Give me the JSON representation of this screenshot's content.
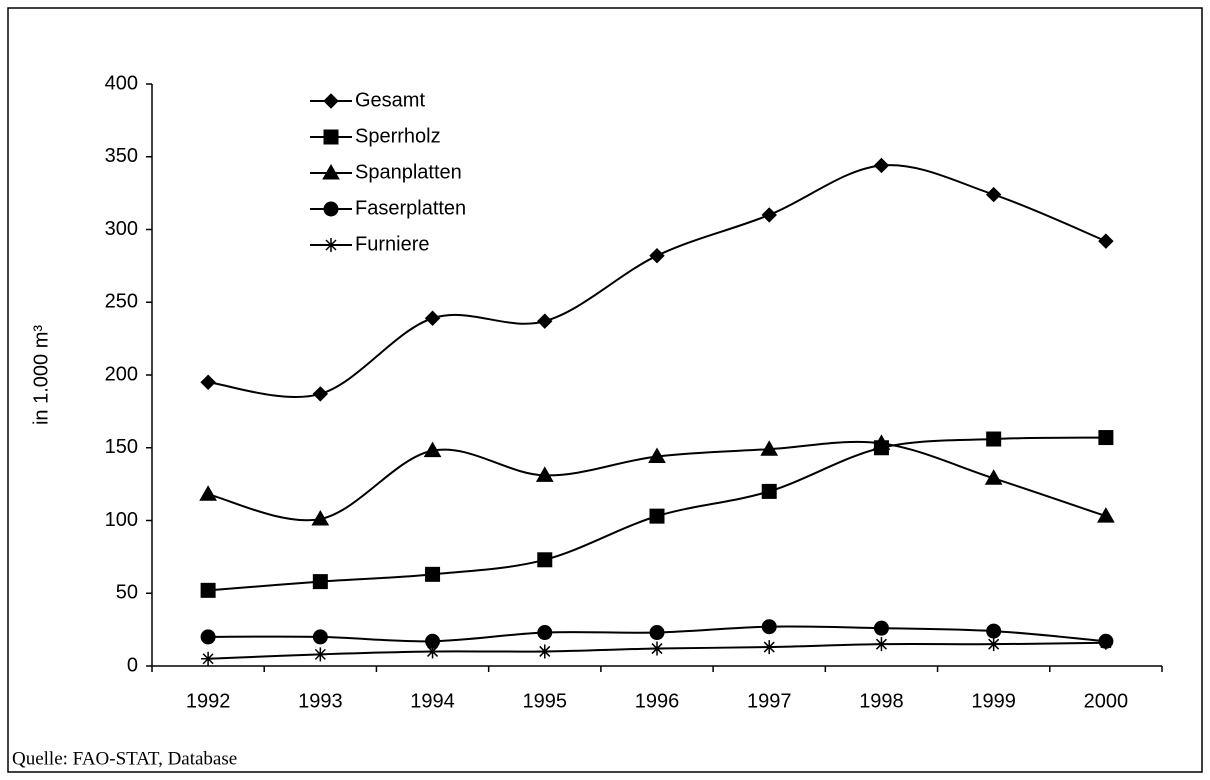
{
  "chart_data": {
    "type": "line",
    "source": "Quelle: FAO-STAT, Database",
    "y_label": "in 1.000 m³",
    "categories": [
      "1992",
      "1993",
      "1994",
      "1995",
      "1996",
      "1997",
      "1998",
      "1999",
      "2000"
    ],
    "ylim": [
      0,
      400
    ],
    "yticks": [
      0,
      50,
      100,
      150,
      200,
      250,
      300,
      350,
      400
    ],
    "smooth": true,
    "legend": "top-left",
    "series": [
      {
        "name": "Gesamt",
        "color": "#000000",
        "marker": "diamond",
        "values": [
          195,
          187,
          239,
          237,
          282,
          310,
          344,
          324,
          292
        ]
      },
      {
        "name": "Sperrholz",
        "color": "#000000",
        "marker": "square",
        "values": [
          52,
          58,
          63,
          73,
          103,
          120,
          150,
          156,
          157
        ]
      },
      {
        "name": "Spanplatten",
        "color": "#000000",
        "marker": "triangle",
        "values": [
          118,
          101,
          148,
          131,
          144,
          149,
          153,
          129,
          103
        ]
      },
      {
        "name": "Faserplatten",
        "color": "#000000",
        "marker": "circle",
        "values": [
          20,
          20,
          17,
          23,
          23,
          27,
          26,
          24,
          17
        ]
      },
      {
        "name": "Furniere",
        "color": "#000000",
        "marker": "asterisk",
        "values": [
          5,
          8,
          10,
          10,
          12,
          13,
          15,
          15,
          16
        ]
      }
    ]
  }
}
